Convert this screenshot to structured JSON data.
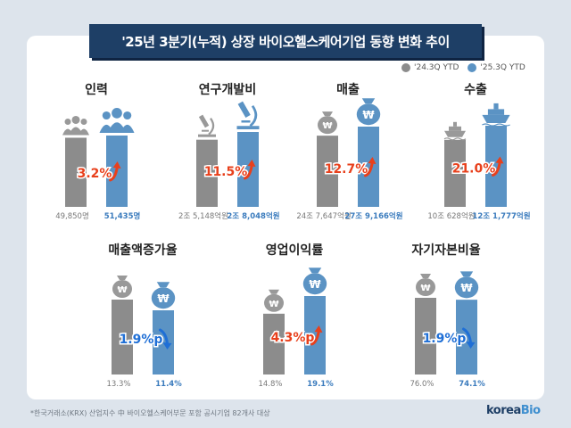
{
  "title": "'25년 3분기(누적) 상장 바이오헬스케어기업 동향 변화 추이",
  "legend": [
    {
      "label": "'24.3Q YTD",
      "color": "#8c8c8c"
    },
    {
      "label": "'25.3Q YTD",
      "color": "#5b93c4"
    }
  ],
  "colors": {
    "gray": "#8c8c8c",
    "blue": "#5b93c4",
    "up": "#e8401c",
    "down": "#1f6fd6",
    "icon": "#999999"
  },
  "chart_data": [
    {
      "type": "bar",
      "title": "인력",
      "icon": "people-icon",
      "series": [
        {
          "name": "'24.3Q YTD",
          "value": 49850,
          "label": "49,850명"
        },
        {
          "name": "'25.3Q YTD",
          "value": 51435,
          "label": "51,435명"
        }
      ],
      "change": "3.2%",
      "direction": "up"
    },
    {
      "type": "bar",
      "title": "연구개발비",
      "icon": "microscope-icon",
      "series": [
        {
          "name": "'24.3Q YTD",
          "value": 25148,
          "label": "2조 5,148억원"
        },
        {
          "name": "'25.3Q YTD",
          "value": 28048,
          "label": "2조 8,048억원"
        }
      ],
      "change": "11.5%",
      "direction": "up"
    },
    {
      "type": "bar",
      "title": "매출",
      "icon": "money-bag-icon",
      "series": [
        {
          "name": "'24.3Q YTD",
          "value": 247647,
          "label": "24조 7,647억원"
        },
        {
          "name": "'25.3Q YTD",
          "value": 279166,
          "label": "27조 9,166억원"
        }
      ],
      "change": "12.7%",
      "direction": "up"
    },
    {
      "type": "bar",
      "title": "수출",
      "icon": "ship-icon",
      "series": [
        {
          "name": "'24.3Q YTD",
          "value": 100628,
          "label": "10조 628억원"
        },
        {
          "name": "'25.3Q YTD",
          "value": 121777,
          "label": "12조 1,777억원"
        }
      ],
      "change": "21.0%",
      "direction": "up"
    },
    {
      "type": "bar",
      "title": "매출액증가율",
      "icon": "money-bag-icon",
      "series": [
        {
          "name": "'24.3Q YTD",
          "value": 13.3,
          "label": "13.3%"
        },
        {
          "name": "'25.3Q YTD",
          "value": 11.4,
          "label": "11.4%"
        }
      ],
      "change": "1.9%p",
      "direction": "down"
    },
    {
      "type": "bar",
      "title": "영업이익률",
      "icon": "money-bag-icon",
      "series": [
        {
          "name": "'24.3Q YTD",
          "value": 14.8,
          "label": "14.8%"
        },
        {
          "name": "'25.3Q YTD",
          "value": 19.1,
          "label": "19.1%"
        }
      ],
      "change": "4.3%p",
      "direction": "up"
    },
    {
      "type": "bar",
      "title": "자기자본비율",
      "icon": "money-bag-icon",
      "series": [
        {
          "name": "'24.3Q YTD",
          "value": 76.0,
          "label": "76.0%"
        },
        {
          "name": "'25.3Q YTD",
          "value": 74.1,
          "label": "74.1%"
        }
      ],
      "change": "1.9%p",
      "direction": "down"
    }
  ],
  "footnote": "*한국거래소(KRX) 산업지수 中 바이오헬스케어부문 포함 공시기업 82개사 대상",
  "logo": {
    "main": "korea",
    "accent": "Bio"
  }
}
